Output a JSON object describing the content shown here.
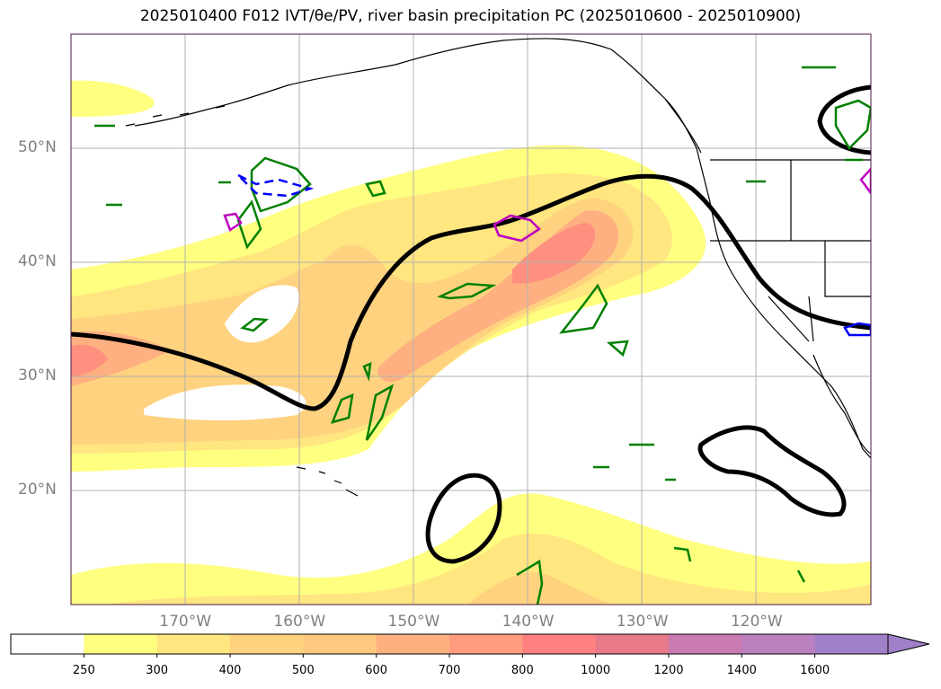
{
  "title": "2025010400 F012 IVT/θe/PV, river basin precipitation PC (2025010600 - 2025010900)",
  "map": {
    "lon_range": [
      180,
      250
    ],
    "lat_range": [
      10,
      60
    ],
    "lat_ticks": [
      {
        "value": 50,
        "label": "50°N"
      },
      {
        "value": 40,
        "label": "40°N"
      },
      {
        "value": 30,
        "label": "30°N"
      },
      {
        "value": 20,
        "label": "20°N"
      }
    ],
    "lon_ticks": [
      {
        "value": -170,
        "label": "170°W"
      },
      {
        "value": -160,
        "label": "160°W"
      },
      {
        "value": -150,
        "label": "150°W"
      },
      {
        "value": -140,
        "label": "140°W"
      },
      {
        "value": -130,
        "label": "130°W"
      },
      {
        "value": -120,
        "label": "120°W"
      }
    ],
    "grid": true
  },
  "colorbar": {
    "levels": [
      "250",
      "300",
      "400",
      "500",
      "600",
      "700",
      "800",
      "1000",
      "1200",
      "1400",
      "1600"
    ],
    "colors": [
      "#ffffff",
      "#ffff80",
      "#ffe680",
      "#ffd280",
      "#ffc880",
      "#ffb080",
      "#ff9c80",
      "#ff8080",
      "#e87a8a",
      "#c97ab0",
      "#bb80c0",
      "#a080c8"
    ],
    "extend": "max"
  },
  "colors": {
    "ivt_contour": "#000000",
    "pv_green": "#008000",
    "pv_blue": "#0000ff",
    "pv_magenta": "#c000c0",
    "coast": "#000000"
  }
}
